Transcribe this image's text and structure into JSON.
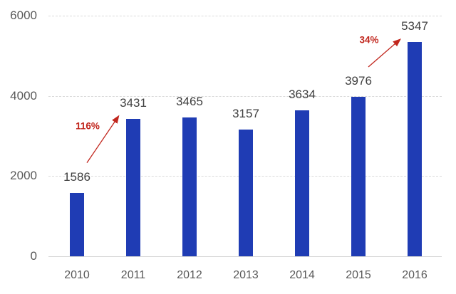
{
  "chart_data": {
    "type": "bar",
    "categories": [
      "2010",
      "2011",
      "2012",
      "2013",
      "2014",
      "2015",
      "2016"
    ],
    "values": [
      1586,
      3431,
      3465,
      3157,
      3634,
      3976,
      5347
    ],
    "value_labels": [
      "1586",
      "3431",
      "3465",
      "3157",
      "3634",
      "3976",
      "5347"
    ],
    "title": "",
    "xlabel": "",
    "ylabel": "",
    "ylim": [
      0,
      6000
    ],
    "y_ticks": [
      0,
      2000,
      4000,
      6000
    ],
    "y_tick_labels": [
      "0",
      "2000",
      "4000",
      "6000"
    ],
    "grid": "horizontal-dashed",
    "legend": "none",
    "annotations": [
      {
        "label": "116%",
        "from_category": "2010",
        "to_category": "2011",
        "from_index": 0,
        "to_index": 1
      },
      {
        "label": "34%",
        "from_category": "2015",
        "to_category": "2016",
        "from_index": 5,
        "to_index": 6
      }
    ],
    "colors": {
      "bar": "#1f3cb4",
      "value_label": "#3f3f3f",
      "axis_label": "#595959",
      "gridline": "#d9d9d9",
      "baseline": "#d6d6d6",
      "annotation": "#c1261d",
      "background": "#ffffff"
    }
  }
}
